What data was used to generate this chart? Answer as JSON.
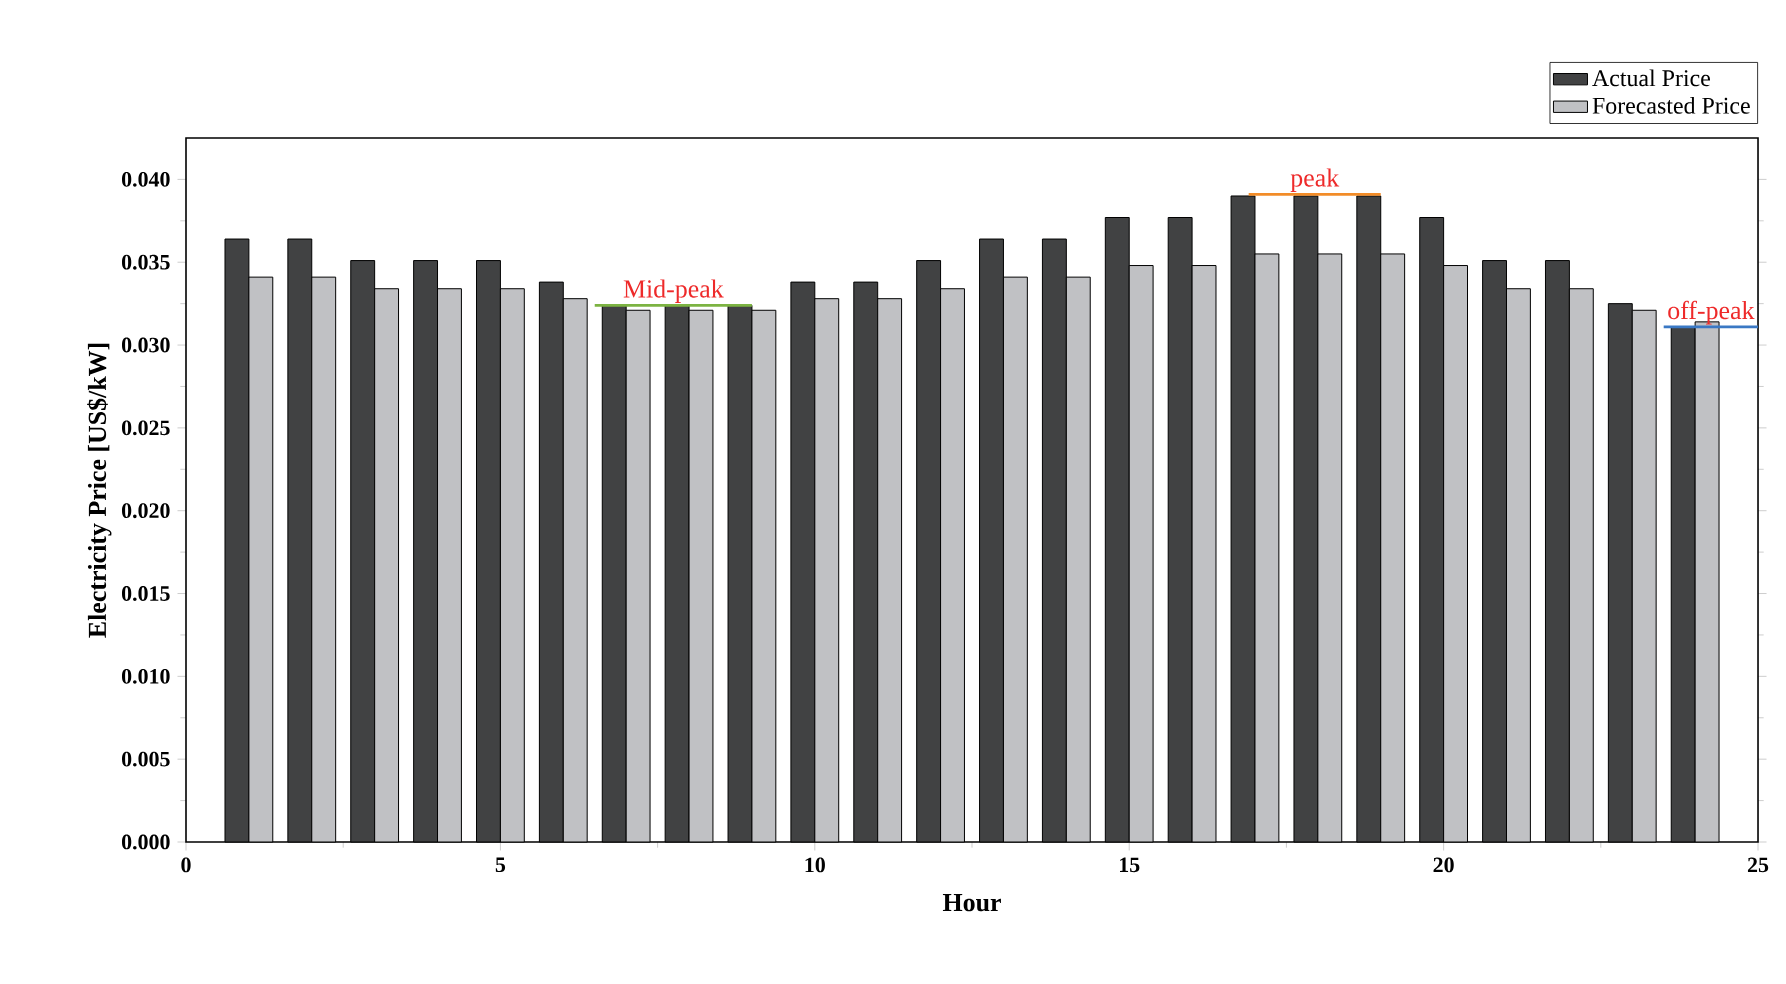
{
  "chart_data": {
    "type": "bar",
    "xlabel": "Hour",
    "ylabel": "Electricity Price [US$/kW]",
    "x": [
      1,
      2,
      3,
      4,
      5,
      6,
      7,
      8,
      9,
      10,
      11,
      12,
      13,
      14,
      15,
      16,
      17,
      18,
      19,
      20,
      21,
      22,
      23,
      24
    ],
    "series": [
      {
        "name": "Actual Price",
        "color": "#414243",
        "values": [
          0.0364,
          0.0364,
          0.0351,
          0.0351,
          0.0351,
          0.0338,
          0.0324,
          0.0324,
          0.0324,
          0.0338,
          0.0338,
          0.0351,
          0.0364,
          0.0364,
          0.0377,
          0.0377,
          0.039,
          0.039,
          0.039,
          0.0377,
          0.0351,
          0.0351,
          0.0325,
          0.0311
        ]
      },
      {
        "name": "Forecasted Price",
        "color": "#c0c1c4",
        "values": [
          0.0341,
          0.0341,
          0.0334,
          0.0334,
          0.0334,
          0.0328,
          0.0321,
          0.0321,
          0.0321,
          0.0328,
          0.0328,
          0.0334,
          0.0341,
          0.0341,
          0.0348,
          0.0348,
          0.0355,
          0.0355,
          0.0355,
          0.0348,
          0.0334,
          0.0334,
          0.0321,
          0.0314
        ]
      },
      {
        "type": "line",
        "color": "#7cb342",
        "x": [
          6.5,
          9.0
        ],
        "values": [
          0.0324,
          0.0324
        ]
      },
      {
        "type": "line",
        "color": "#f28c28",
        "x": [
          16.9,
          19.0
        ],
        "values": [
          0.0391,
          0.0391
        ]
      },
      {
        "type": "line",
        "color": "#3a78c4",
        "x": [
          23.5,
          25.0
        ],
        "values": [
          0.0311,
          0.0311
        ]
      }
    ],
    "annotations": [
      {
        "text": "Mid-peak",
        "x": 7.75,
        "y": 0.0324
      },
      {
        "text": "peak",
        "x": 17.95,
        "y": 0.0391
      },
      {
        "text": "off-peak",
        "x": 24.25,
        "y": 0.0311
      }
    ],
    "xlim": [
      0,
      25
    ],
    "ylim": [
      0,
      0.0425
    ],
    "xticks": [
      0,
      5,
      10,
      15,
      20,
      25
    ],
    "yticks": [
      {
        "value": 0,
        "label": "0.000"
      },
      {
        "value": 0.005,
        "label": "0.005"
      },
      {
        "value": 0.01,
        "label": "0.010"
      },
      {
        "value": 0.015,
        "label": "0.015"
      },
      {
        "value": 0.02,
        "label": "0.020"
      },
      {
        "value": 0.025,
        "label": "0.025"
      },
      {
        "value": 0.03,
        "label": "0.030"
      },
      {
        "value": 0.035,
        "label": "0.035"
      },
      {
        "value": 0.04,
        "label": "0.040"
      }
    ],
    "legend": "top right"
  }
}
